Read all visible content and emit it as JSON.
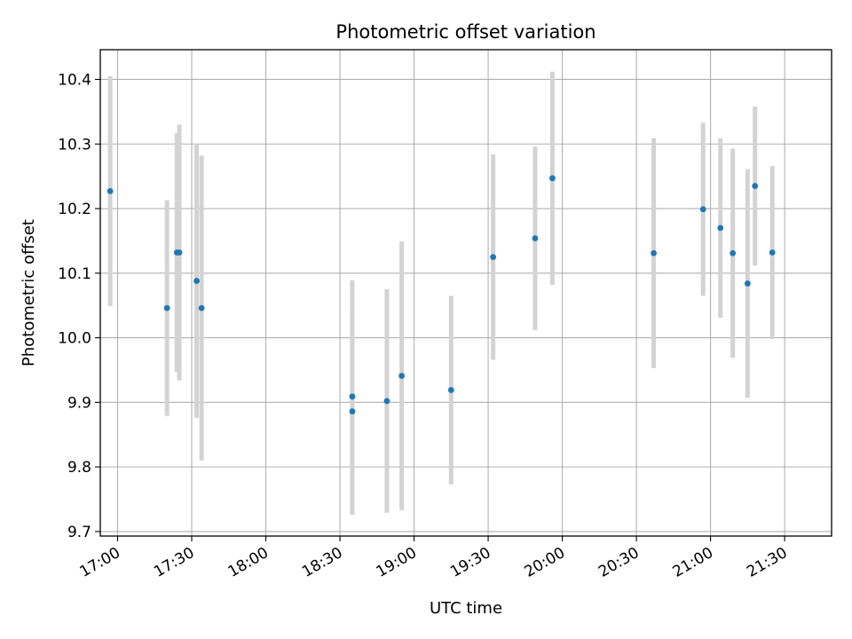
{
  "chart_data": {
    "type": "scatter",
    "title": "Photometric offset variation",
    "xlabel": "UTC time",
    "ylabel": "Photometric offset",
    "x_unit": "UTC time (HH:MM)",
    "xlim": [
      "16:53",
      "21:49"
    ],
    "ylim": [
      9.693,
      10.446
    ],
    "x_ticks": [
      "17:00",
      "17:30",
      "18:00",
      "18:30",
      "19:00",
      "19:30",
      "20:00",
      "20:30",
      "21:00",
      "21:30"
    ],
    "y_ticks": [
      9.7,
      9.8,
      9.9,
      10.0,
      10.1,
      10.2,
      10.3,
      10.4
    ],
    "y_tick_labels": [
      "9.7",
      "9.8",
      "9.9",
      "10.0",
      "10.1",
      "10.2",
      "10.3",
      "10.4"
    ],
    "grid": true,
    "point_color": "#1f77b4",
    "errorbar_color": "#d3d3d3",
    "points": [
      {
        "x": "16:57",
        "y": 10.227,
        "yerr": 0.178
      },
      {
        "x": "17:20",
        "y": 10.046,
        "yerr": 0.167
      },
      {
        "x": "17:24",
        "y": 10.132,
        "yerr": 0.185
      },
      {
        "x": "17:25",
        "y": 10.132,
        "yerr": 0.198
      },
      {
        "x": "17:32",
        "y": 10.088,
        "yerr": 0.212
      },
      {
        "x": "17:34",
        "y": 10.046,
        "yerr": 0.236
      },
      {
        "x": "18:35",
        "y": 9.886,
        "yerr": 0.16
      },
      {
        "x": "18:35",
        "y": 9.909,
        "yerr": 0.18
      },
      {
        "x": "18:49",
        "y": 9.902,
        "yerr": 0.173
      },
      {
        "x": "18:55",
        "y": 9.941,
        "yerr": 0.208
      },
      {
        "x": "19:15",
        "y": 9.919,
        "yerr": 0.146
      },
      {
        "x": "19:32",
        "y": 10.125,
        "yerr": 0.159
      },
      {
        "x": "19:49",
        "y": 10.154,
        "yerr": 0.142
      },
      {
        "x": "19:56",
        "y": 10.247,
        "yerr": 0.165
      },
      {
        "x": "20:37",
        "y": 10.131,
        "yerr": 0.178
      },
      {
        "x": "20:57",
        "y": 10.199,
        "yerr": 0.134
      },
      {
        "x": "21:04",
        "y": 10.17,
        "yerr": 0.139
      },
      {
        "x": "21:09",
        "y": 10.131,
        "yerr": 0.162
      },
      {
        "x": "21:15",
        "y": 10.084,
        "yerr": 0.177
      },
      {
        "x": "21:18",
        "y": 10.235,
        "yerr": 0.123
      },
      {
        "x": "21:25",
        "y": 10.132,
        "yerr": 0.134
      }
    ]
  }
}
